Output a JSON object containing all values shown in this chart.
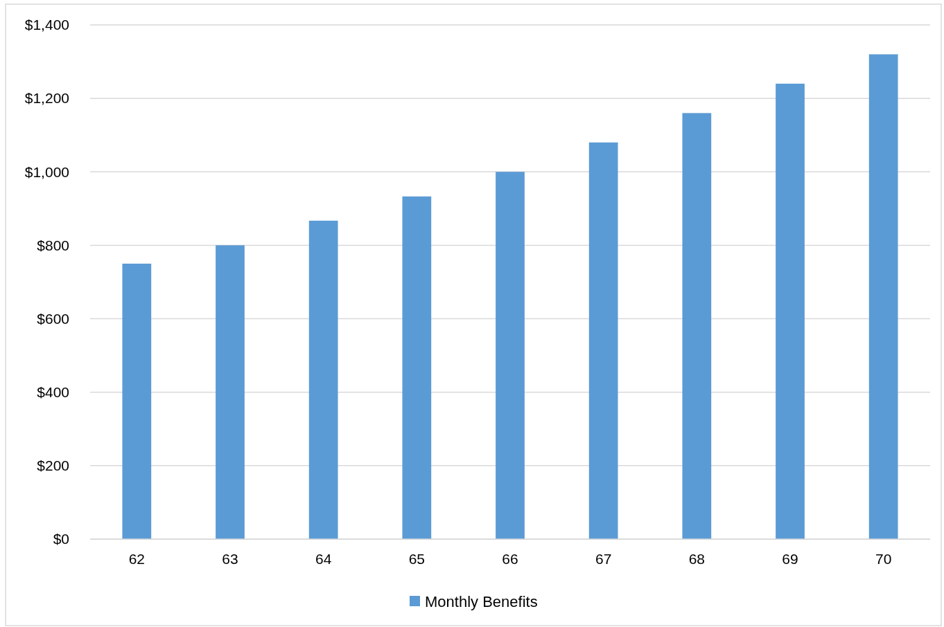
{
  "chart_data": {
    "type": "bar",
    "categories": [
      "62",
      "63",
      "64",
      "65",
      "66",
      "67",
      "68",
      "69",
      "70"
    ],
    "series": [
      {
        "name": "Monthly Benefits",
        "color": "#5b9bd5",
        "values": [
          750,
          800,
          867,
          933,
          1000,
          1080,
          1160,
          1240,
          1320
        ]
      }
    ],
    "ylim": [
      0,
      1400
    ],
    "yticks": [
      {
        "value": 0,
        "label": "$0"
      },
      {
        "value": 200,
        "label": "$200"
      },
      {
        "value": 400,
        "label": "$400"
      },
      {
        "value": 600,
        "label": "$600"
      },
      {
        "value": 800,
        "label": "$800"
      },
      {
        "value": 1000,
        "label": "$1,000"
      },
      {
        "value": 1200,
        "label": "$1,200"
      },
      {
        "value": 1400,
        "label": "$1,400"
      }
    ],
    "grid": "y",
    "legend": "bottom"
  }
}
